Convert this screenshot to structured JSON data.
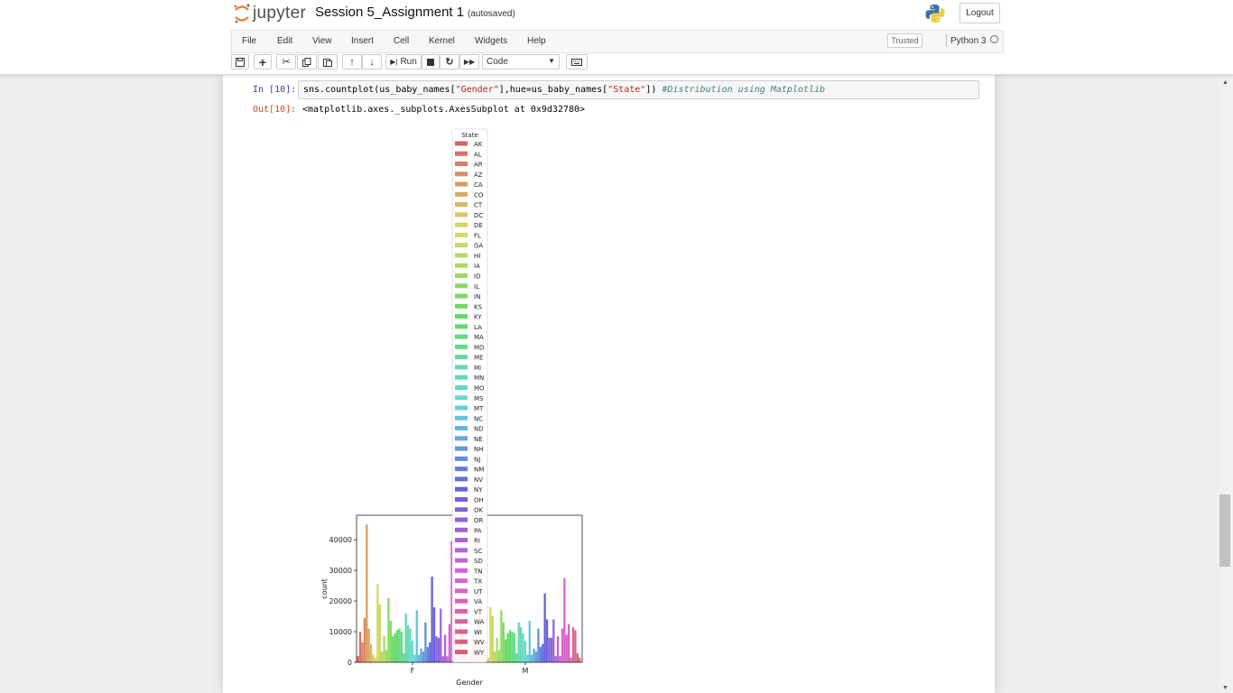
{
  "app": {
    "logo_text": "jupyter",
    "notebook_title": "Session 5_Assignment 1",
    "save_status": "(autosaved)",
    "logout_label": "Logout"
  },
  "menu": {
    "items": [
      "File",
      "Edit",
      "View",
      "Insert",
      "Cell",
      "Kernel",
      "Widgets",
      "Help"
    ],
    "trusted_label": "Trusted",
    "kernel_name": "Python 3"
  },
  "toolbar": {
    "run_label": "Run",
    "cell_type": "Code"
  },
  "cell": {
    "in_prompt": "In [10]:",
    "code_parts": {
      "p1": "sns.countplot(us_baby_names[",
      "s1": "\"Gender\"",
      "p2": "],hue=us_baby_names[",
      "s2": "\"State\"",
      "p3": "]) ",
      "comment": "#Distribution using Matplotlib"
    },
    "out_prompt": "Out[10]:",
    "output_text": "<matplotlib.axes._subplots.AxesSubplot at 0x9d32780>"
  },
  "chart_data": {
    "type": "bar",
    "xlabel": "Gender",
    "ylabel": "count",
    "categories": [
      "F",
      "M"
    ],
    "ylim": [
      0,
      48000
    ],
    "yticks": [
      0,
      10000,
      20000,
      30000,
      40000
    ],
    "legend_title": "State",
    "legend_placement": "upper center, overlapping plot",
    "states": [
      "AK",
      "AL",
      "AR",
      "AZ",
      "CA",
      "CO",
      "CT",
      "DC",
      "DE",
      "FL",
      "GA",
      "HI",
      "IA",
      "ID",
      "IL",
      "IN",
      "KS",
      "KY",
      "LA",
      "MA",
      "MD",
      "ME",
      "MI",
      "MN",
      "MO",
      "MS",
      "MT",
      "NC",
      "ND",
      "NE",
      "NH",
      "NJ",
      "NM",
      "NV",
      "NY",
      "OH",
      "OK",
      "OR",
      "PA",
      "RI",
      "SC",
      "SD",
      "TN",
      "TX",
      "UT",
      "VA",
      "VT",
      "WA",
      "WI",
      "WV",
      "WY"
    ],
    "series_values_F": [
      2000,
      10000,
      6500,
      14500,
      45000,
      11000,
      6000,
      2500,
      1500,
      25500,
      19000,
      3500,
      8500,
      4000,
      21000,
      13500,
      8500,
      9500,
      10500,
      11000,
      10000,
      3000,
      16000,
      12000,
      11000,
      7000,
      2500,
      17000,
      2500,
      4500,
      3500,
      13000,
      5000,
      6500,
      28000,
      18000,
      8500,
      8000,
      17500,
      2000,
      9000,
      2000,
      12500,
      39500,
      10000,
      14500,
      1500,
      14000,
      11000,
      3000,
      1500
    ],
    "series_values_M": [
      2000,
      9500,
      6500,
      14000,
      31000,
      10000,
      6000,
      3000,
      1500,
      18000,
      15000,
      3500,
      8000,
      4000,
      17000,
      13000,
      7500,
      9500,
      10500,
      10000,
      9500,
      3000,
      13000,
      11500,
      9500,
      7000,
      2500,
      13500,
      2500,
      4500,
      3500,
      11000,
      5000,
      6000,
      22500,
      14000,
      8000,
      8000,
      14000,
      2000,
      8500,
      2000,
      11000,
      27500,
      9000,
      12500,
      1500,
      11500,
      10500,
      3000,
      1500
    ]
  },
  "colors": {
    "in_prompt": "#303f9f",
    "out_prompt": "#d84315",
    "code_string": "#ba2121",
    "code_comment": "#408080"
  },
  "icons": [
    "jupyter-logo-icon",
    "python-logo-icon",
    "save-icon",
    "plus-icon",
    "cut-icon",
    "copy-icon",
    "paste-icon",
    "move-up-icon",
    "move-down-icon",
    "run-icon",
    "stop-icon",
    "restart-icon",
    "fast-forward-icon",
    "keyboard-icon"
  ]
}
